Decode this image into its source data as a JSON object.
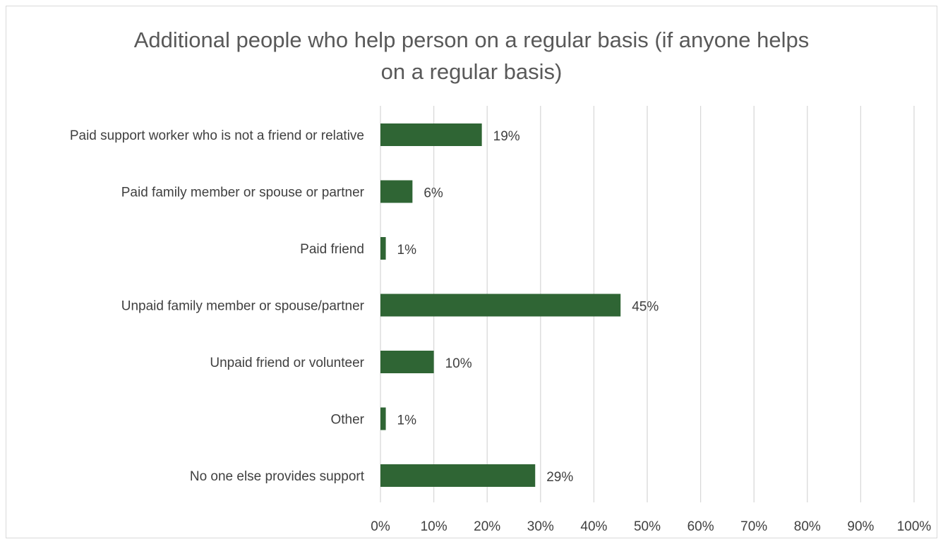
{
  "chart_data": {
    "type": "bar",
    "orientation": "horizontal",
    "title_lines": [
      "Additional people who help person on a regular basis (if anyone helps",
      "on a regular basis)"
    ],
    "categories": [
      "Paid support worker who is not a friend or relative",
      "Paid family member or spouse or partner",
      "Paid friend",
      "Unpaid family member or spouse/partner",
      "Unpaid friend or volunteer",
      "Other",
      "No one else provides support"
    ],
    "values": [
      19,
      6,
      1,
      45,
      10,
      1,
      29
    ],
    "value_labels": [
      "19%",
      "6%",
      "1%",
      "45%",
      "10%",
      "1%",
      "29%"
    ],
    "x_ticks": [
      "0%",
      "10%",
      "20%",
      "30%",
      "40%",
      "50%",
      "60%",
      "70%",
      "80%",
      "90%",
      "100%"
    ],
    "xlim": [
      0,
      100
    ],
    "grid": true,
    "legend": "none",
    "colors": {
      "bar": "#2f6534",
      "grid": "#d9d9d9",
      "text": "#404040",
      "title": "#595959",
      "border": "#d9d9d9"
    }
  }
}
